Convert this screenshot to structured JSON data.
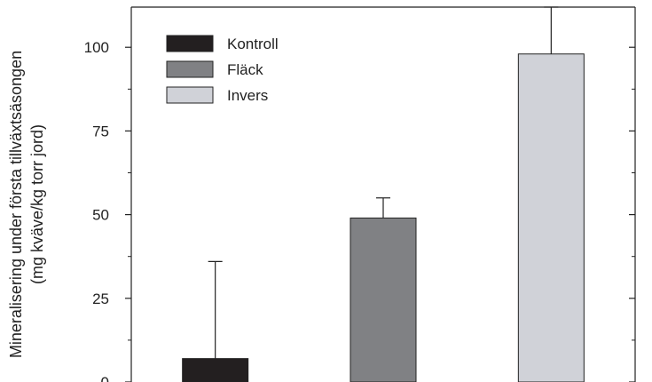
{
  "chart_data": {
    "type": "bar",
    "ylabel_line1": "Mineralisering under första tillväxtsäsongen",
    "ylabel_line2": "(mg kväve/kg torr jord)",
    "ylim": [
      0,
      112
    ],
    "yticks": [
      0,
      25,
      50,
      75,
      100
    ],
    "minor_ticks": [
      12.5,
      37.5,
      62.5,
      87.5
    ],
    "grid": false,
    "legend_position": "top-left",
    "series": [
      {
        "name": "Kontroll",
        "value": 7,
        "error": 29,
        "color": "#231f20"
      },
      {
        "name": "Fläck",
        "value": 49,
        "error": 6,
        "color": "#808184"
      },
      {
        "name": "Invers",
        "value": 98,
        "error": 14,
        "color": "#d0d2d8"
      }
    ]
  }
}
